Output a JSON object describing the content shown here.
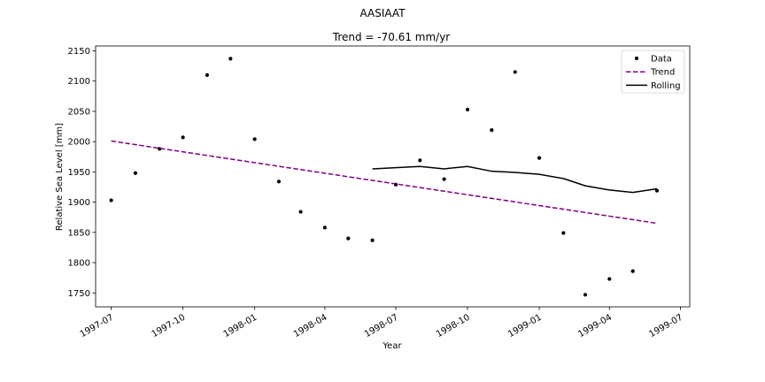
{
  "chart_data": {
    "type": "line",
    "suptitle": "AASIAAT",
    "title": "Trend = -70.61 mm/yr",
    "xlabel": "Year",
    "ylabel": "Relative Sea Level [mm]",
    "xlim": [
      "1997-06-11",
      "1999-07-13"
    ],
    "ylim": [
      1727,
      2158
    ],
    "xticks": [
      "1997-07",
      "1997-10",
      "1998-01",
      "1998-04",
      "1998-07",
      "1998-10",
      "1999-01",
      "1999-04",
      "1999-07"
    ],
    "xtick_dates": [
      "1997-07-01",
      "1997-10-01",
      "1998-01-01",
      "1998-04-01",
      "1998-07-01",
      "1998-10-01",
      "1999-01-01",
      "1999-04-01",
      "1999-07-01"
    ],
    "yticks": [
      1750,
      1800,
      1850,
      1900,
      1950,
      2000,
      2050,
      2100,
      2150
    ],
    "legend_position": "upper-right",
    "grid": false,
    "series": [
      {
        "name": "Data",
        "style": "points",
        "color": "#000000",
        "x": [
          "1997-07-01",
          "1997-08-01",
          "1997-09-01",
          "1997-10-01",
          "1997-11-01",
          "1997-12-01",
          "1998-01-01",
          "1998-02-01",
          "1998-03-01",
          "1998-04-01",
          "1998-05-01",
          "1998-06-01",
          "1998-07-01",
          "1998-08-01",
          "1998-09-01",
          "1998-10-01",
          "1998-11-01",
          "1998-12-01",
          "1999-01-01",
          "1999-02-01",
          "1999-03-01",
          "1999-04-01",
          "1999-05-01",
          "1999-06-01"
        ],
        "y": [
          1903,
          1948,
          1988,
          2007,
          2110,
          2137,
          2004,
          1934,
          1884,
          1858,
          1840,
          1837,
          1929,
          1969,
          1938,
          2053,
          2019,
          2115,
          1973,
          1849,
          1747,
          1773,
          1786,
          1919
        ]
      },
      {
        "name": "Trend",
        "style": "dashed",
        "color": "#800080",
        "x": [
          "1997-07-01",
          "1999-06-01"
        ],
        "y": [
          2001,
          1865
        ]
      },
      {
        "name": "Rolling",
        "style": "solid",
        "color": "#000000",
        "x": [
          "1998-06-01",
          "1998-07-01",
          "1998-08-01",
          "1998-09-01",
          "1998-10-01",
          "1998-11-01",
          "1998-12-01",
          "1999-01-01",
          "1999-02-01",
          "1999-03-01",
          "1999-04-01",
          "1999-05-01",
          "1999-06-01"
        ],
        "y": [
          1955,
          1957,
          1959,
          1955,
          1959,
          1951,
          1949,
          1946,
          1939,
          1927,
          1920,
          1916,
          1922
        ]
      }
    ]
  }
}
